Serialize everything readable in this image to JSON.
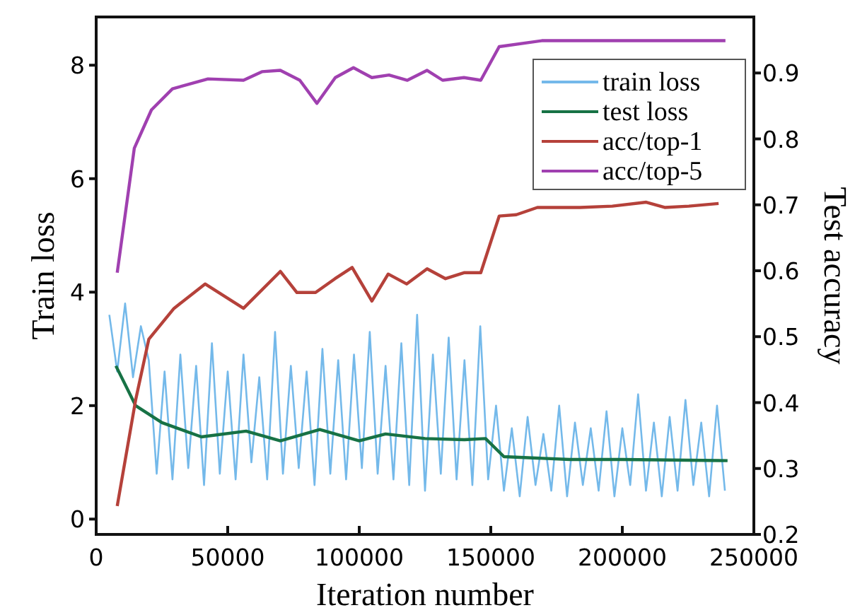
{
  "chart_data": {
    "type": "line",
    "xlabel": "Iteration number",
    "ylabel": "Train loss",
    "y2label": "Test accuracy",
    "xlim": [
      0,
      250000
    ],
    "xticks": [
      0,
      50000,
      100000,
      150000,
      200000,
      250000
    ],
    "ylim": [
      -0.27,
      8.85
    ],
    "yticks": [
      0,
      2,
      4,
      6,
      8
    ],
    "y2lim": [
      0.2,
      0.985
    ],
    "y2ticks": [
      0.2,
      0.3,
      0.4,
      0.5,
      0.6,
      0.7,
      0.8,
      0.9
    ],
    "grid": false,
    "legend": "top right",
    "marker": "none",
    "line_style": "solid",
    "series": [
      {
        "name": "train loss",
        "color": "#74b9ea",
        "x": [
          5000,
          8000,
          11000,
          14000,
          17000,
          20000,
          23000,
          26000,
          29000,
          32000,
          35000,
          38000,
          41000,
          44000,
          47000,
          50000,
          53000,
          56000,
          59000,
          62000,
          65000,
          68000,
          71000,
          74000,
          77000,
          80000,
          83000,
          86000,
          89000,
          92000,
          95000,
          98000,
          101000,
          104000,
          107000,
          110000,
          113000,
          116000,
          119000,
          122000,
          125000,
          128000,
          131000,
          134000,
          137000,
          140000,
          143000,
          146000,
          149000,
          152000,
          155000,
          158000,
          161000,
          164000,
          167000,
          170000,
          173000,
          176000,
          179000,
          182000,
          185000,
          188000,
          191000,
          194000,
          197000,
          200000,
          203000,
          206000,
          209000,
          212000,
          215000,
          218000,
          221000,
          224000,
          227000,
          230000,
          233000,
          236000,
          239000
        ],
        "values": [
          3.6,
          2.6,
          3.8,
          2.5,
          3.4,
          2.8,
          0.8,
          2.6,
          0.7,
          2.9,
          0.9,
          2.7,
          0.6,
          3.1,
          0.8,
          2.6,
          0.7,
          2.9,
          1.0,
          2.5,
          0.7,
          3.3,
          0.8,
          2.7,
          0.9,
          2.6,
          0.6,
          3.0,
          0.8,
          2.8,
          0.7,
          2.9,
          0.9,
          3.3,
          0.8,
          2.7,
          0.7,
          3.1,
          0.6,
          3.6,
          0.5,
          2.9,
          0.8,
          3.2,
          0.7,
          2.8,
          0.6,
          3.4,
          0.7,
          2.0,
          0.5,
          1.6,
          0.4,
          1.8,
          0.6,
          1.5,
          0.5,
          2.0,
          0.4,
          1.7,
          0.6,
          1.6,
          0.5,
          1.9,
          0.4,
          1.6,
          0.6,
          2.2,
          0.5,
          1.7,
          0.4,
          1.8,
          0.5,
          2.1,
          0.6,
          1.7,
          0.4,
          2.0,
          0.5
        ]
      },
      {
        "name": "test loss",
        "color": "#177245",
        "x": [
          7500,
          15000,
          25000,
          40000,
          57000,
          70000,
          85000,
          100000,
          110000,
          125000,
          140000,
          148000,
          155000,
          180000,
          200000,
          240000
        ],
        "values": [
          2.7,
          2.0,
          1.7,
          1.45,
          1.55,
          1.38,
          1.58,
          1.38,
          1.5,
          1.42,
          1.4,
          1.42,
          1.1,
          1.05,
          1.05,
          1.03
        ]
      },
      {
        "name": "acc/top-1",
        "color": "#b5413a",
        "axis": "y2",
        "x": [
          8000,
          15000,
          20000,
          29600,
          41400,
          56000,
          70000,
          76300,
          83400,
          90800,
          97300,
          104800,
          111000,
          118000,
          125800,
          132800,
          139800,
          146200,
          153200,
          159700,
          167700,
          183900,
          196200,
          209100,
          216100,
          225300,
          236600
        ],
        "values": [
          0.243,
          0.404,
          0.496,
          0.543,
          0.58,
          0.543,
          0.599,
          0.567,
          0.567,
          0.588,
          0.605,
          0.554,
          0.595,
          0.58,
          0.603,
          0.588,
          0.597,
          0.597,
          0.683,
          0.685,
          0.696,
          0.696,
          0.698,
          0.704,
          0.696,
          0.698,
          0.702
        ]
      },
      {
        "name": "acc/top-5",
        "color": "#a040b0",
        "axis": "y2",
        "x": [
          8000,
          14500,
          21000,
          29000,
          42500,
          56000,
          63000,
          70000,
          77400,
          83900,
          90900,
          97800,
          104800,
          111300,
          118300,
          125800,
          131700,
          139800,
          146200,
          153200,
          169400,
          196200,
          239200
        ],
        "values": [
          0.597,
          0.786,
          0.844,
          0.876,
          0.891,
          0.889,
          0.902,
          0.904,
          0.889,
          0.854,
          0.893,
          0.908,
          0.893,
          0.897,
          0.889,
          0.904,
          0.889,
          0.893,
          0.889,
          0.94,
          0.949,
          0.949,
          0.949
        ]
      }
    ]
  }
}
